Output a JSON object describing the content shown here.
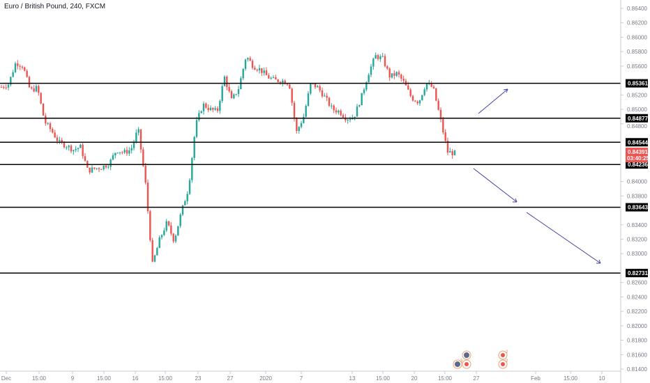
{
  "header": {
    "title": "Euro / British Pound, 240, FXCM"
  },
  "colors": {
    "up": "#26a69a",
    "down": "#ef5350",
    "level_line": "#000000",
    "arrow": "#3f3fa8",
    "last_price_bg": "#ef5350"
  },
  "chart_data": {
    "type": "candlestick",
    "symbol": "EURGBP",
    "interval": "240",
    "ylim": [
      0.814,
      0.864
    ],
    "y_ticks": [
      "0.86400",
      "0.86200",
      "0.86000",
      "0.85800",
      "0.85600",
      "0.85200",
      "0.85000",
      "0.84800",
      "0.84000",
      "0.83800",
      "0.83400",
      "0.83200",
      "0.83000",
      "0.82600",
      "0.82400",
      "0.82200",
      "0.82000",
      "0.81800",
      "0.81600",
      "0.81400"
    ],
    "x_ticks": [
      "Dec",
      "15:00",
      "9",
      "15:00",
      "16",
      "15:00",
      "23",
      "27",
      "2020",
      "7",
      "13",
      "15:00",
      "20",
      "15:00",
      "27",
      "Feb",
      "15:00",
      "10"
    ],
    "approx_close_path": [
      0.8531,
      0.8535,
      0.8565,
      0.856,
      0.8526,
      0.853,
      0.8483,
      0.847,
      0.8454,
      0.845,
      0.8444,
      0.8448,
      0.8415,
      0.8418,
      0.842,
      0.8425,
      0.8444,
      0.844,
      0.8444,
      0.8473,
      0.84,
      0.8285,
      0.832,
      0.8343,
      0.8318,
      0.8357,
      0.8391,
      0.8478,
      0.8507,
      0.85,
      0.8497,
      0.8545,
      0.8512,
      0.853,
      0.8574,
      0.856,
      0.8555,
      0.8545,
      0.854,
      0.854,
      0.8536,
      0.8468,
      0.849,
      0.8536,
      0.853,
      0.8516,
      0.85,
      0.8497,
      0.8487,
      0.849,
      0.8516,
      0.855,
      0.8574,
      0.857,
      0.8545,
      0.855,
      0.8536,
      0.8516,
      0.851,
      0.8536,
      0.853,
      0.8487,
      0.8441,
      0.8439
    ],
    "horizontal_levels": [
      "0.85361",
      "0.84877",
      "0.84544",
      "0.84236",
      "0.83643",
      "0.82731"
    ],
    "last_price": "0.84391",
    "countdown": "03:40:25"
  },
  "events": [
    {
      "count": "3"
    },
    {
      "count": "2"
    },
    {
      "count": "2"
    }
  ]
}
